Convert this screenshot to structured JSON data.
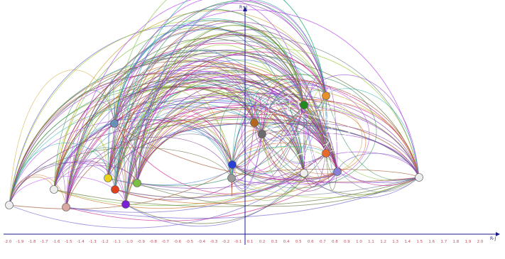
{
  "axes": {
    "x_label": "R-J",
    "y_label": "R+J",
    "x_ticks": [
      "-2.0",
      "-1.9",
      "-1.8",
      "-1.7",
      "-1.6",
      "-1.5",
      "-1.4",
      "-1.3",
      "-1.2",
      "-1.1",
      "-1.0",
      "-0.9",
      "-0.8",
      "-0.7",
      "-0.6",
      "-0.5",
      "-0.4",
      "-0.3",
      "-0.2",
      "-0.1",
      "0.1",
      "0.2",
      "0.3",
      "0.4",
      "0.5",
      "0.6",
      "0.7",
      "0.8",
      "0.9",
      "1.0",
      "1.1",
      "1.2",
      "1.3",
      "1.4",
      "1.5",
      "1.6",
      "1.7",
      "1.8",
      "1.9",
      "2.0"
    ]
  },
  "colors": {
    "axis": "#1a1a8c",
    "tick": "#c05060",
    "edges": [
      "#7a2a8a",
      "#8e44ad",
      "#b23aee",
      "#3aa6a0",
      "#7fbf3f",
      "#c9a227",
      "#5b8fd6",
      "#a0522d",
      "#2e8b57",
      "#9acd32",
      "#6a5acd",
      "#d2691e",
      "#20b2aa",
      "#c71585",
      "#708090",
      "#4682b4",
      "#9932cc",
      "#556b2f"
    ]
  },
  "nodes": [
    {
      "id": "n1",
      "fill": "#eeeeee"
    },
    {
      "id": "n2",
      "fill": "#eeeeee"
    },
    {
      "id": "n3",
      "fill": "#d9a8a0"
    },
    {
      "id": "n4",
      "fill": "#6a8fb5"
    },
    {
      "id": "n5",
      "fill": "#e8d21e"
    },
    {
      "id": "n6",
      "fill": "#e2401c"
    },
    {
      "id": "n7",
      "fill": "#7bc043"
    },
    {
      "id": "n8",
      "fill": "#7a1fd6"
    },
    {
      "id": "n9",
      "fill": "#2a3fd6"
    },
    {
      "id": "n10",
      "fill": "#9a9a9a"
    },
    {
      "id": "n11",
      "fill": "#b5651d"
    },
    {
      "id": "n12",
      "fill": "#6b6b6b"
    },
    {
      "id": "n13",
      "fill": "#1f8a1f"
    },
    {
      "id": "n14",
      "fill": "#e8902a"
    },
    {
      "id": "n15",
      "fill": "#e86a2a"
    },
    {
      "id": "n16",
      "fill": "#eeeeee"
    },
    {
      "id": "n17",
      "fill": "#8a80d8"
    },
    {
      "id": "n18",
      "fill": "#eeeeee"
    }
  ]
}
